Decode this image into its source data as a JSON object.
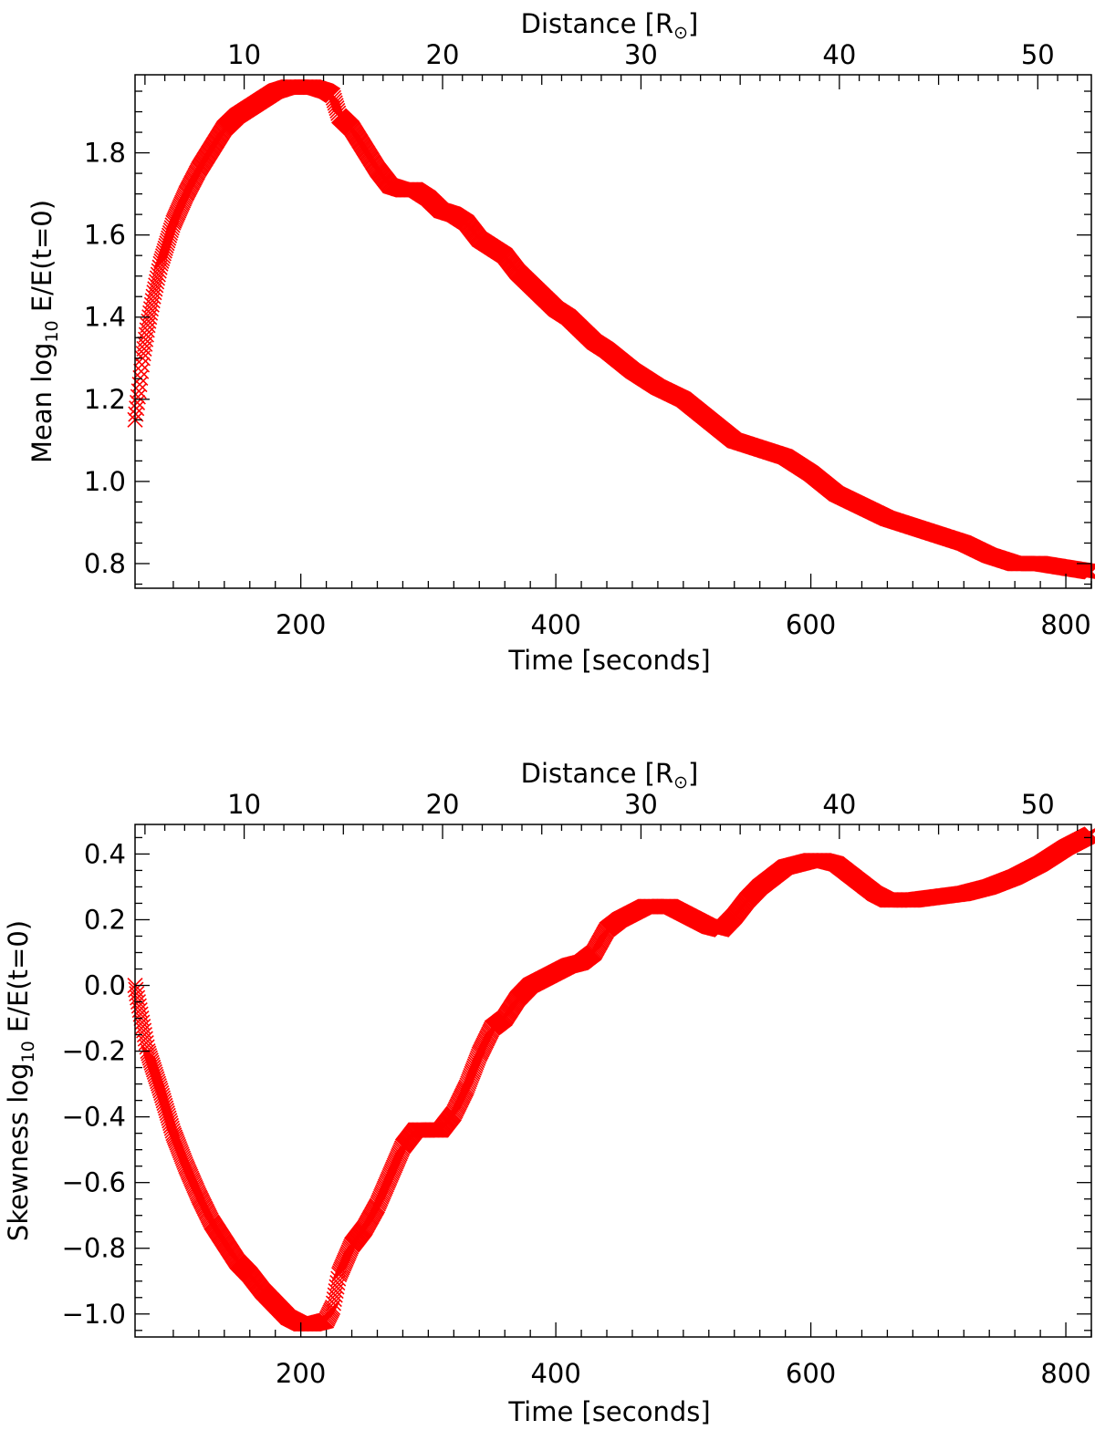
{
  "chart_data": [
    {
      "type": "scatter",
      "marker": "x",
      "color": "#ff0000",
      "xlabel": "Time [seconds]",
      "x2label": {
        "main": "Distance [R",
        "symbol": "⊙",
        "close": "]"
      },
      "ylabel": {
        "before": "Mean log",
        "sub": "10",
        "after": " E/E(t=0)"
      },
      "xlim": [
        70,
        820
      ],
      "ylim": [
        0.74,
        1.99
      ],
      "xticks": [
        200,
        400,
        600,
        800
      ],
      "x2ticks": [
        10,
        20,
        30,
        40,
        50
      ],
      "x2_range": [
        4.5,
        52.7
      ],
      "yticks": [
        0.8,
        1.0,
        1.2,
        1.4,
        1.6,
        1.8
      ],
      "ytick_labels": [
        "0.8",
        "1.0",
        "1.2",
        "1.4",
        "1.6",
        "1.8"
      ],
      "series": [
        {
          "x": [
            70,
            73,
            76,
            80,
            85,
            90,
            95,
            100,
            110,
            120,
            130,
            140,
            150,
            160,
            170,
            180,
            190,
            200,
            210,
            220,
            225,
            230,
            240,
            250,
            260,
            270,
            280,
            290,
            300,
            310,
            320,
            330,
            340,
            350,
            360,
            370,
            380,
            390,
            400,
            410,
            420,
            430,
            440,
            460,
            480,
            500,
            520,
            540,
            560,
            580,
            600,
            620,
            640,
            660,
            680,
            700,
            720,
            740,
            760,
            780,
            800,
            820
          ],
          "y": [
            1.15,
            1.22,
            1.3,
            1.38,
            1.46,
            1.53,
            1.58,
            1.63,
            1.7,
            1.76,
            1.81,
            1.86,
            1.89,
            1.91,
            1.93,
            1.95,
            1.96,
            1.96,
            1.96,
            1.95,
            1.94,
            1.89,
            1.86,
            1.81,
            1.76,
            1.72,
            1.71,
            1.71,
            1.69,
            1.66,
            1.65,
            1.63,
            1.59,
            1.57,
            1.55,
            1.51,
            1.48,
            1.45,
            1.42,
            1.4,
            1.37,
            1.34,
            1.32,
            1.27,
            1.23,
            1.2,
            1.15,
            1.1,
            1.08,
            1.06,
            1.02,
            0.97,
            0.94,
            0.91,
            0.89,
            0.87,
            0.85,
            0.82,
            0.8,
            0.8,
            0.79,
            0.78
          ]
        }
      ]
    },
    {
      "type": "scatter",
      "marker": "x",
      "color": "#ff0000",
      "xlabel": "Time [seconds]",
      "x2label": {
        "main": "Distance [R",
        "symbol": "⊙",
        "close": "]"
      },
      "ylabel": {
        "before": "Skewness log",
        "sub": "10",
        "after": " E/E(t=0)"
      },
      "xlim": [
        70,
        820
      ],
      "ylim": [
        -1.07,
        0.49
      ],
      "xticks": [
        200,
        400,
        600,
        800
      ],
      "x2ticks": [
        10,
        20,
        30,
        40,
        50
      ],
      "x2_range": [
        4.5,
        52.7
      ],
      "yticks": [
        -1.0,
        -0.8,
        -0.6,
        -0.4,
        -0.2,
        0.0,
        0.2,
        0.4
      ],
      "ytick_labels": [
        "−1.0",
        "−0.8",
        "−0.6",
        "−0.4",
        "−0.2",
        "0.0",
        "0.2",
        "0.4"
      ],
      "series": [
        {
          "x": [
            70,
            75,
            80,
            90,
            100,
            110,
            120,
            130,
            140,
            150,
            160,
            170,
            180,
            190,
            200,
            210,
            220,
            225,
            230,
            240,
            250,
            260,
            270,
            280,
            290,
            300,
            310,
            320,
            330,
            340,
            350,
            360,
            370,
            380,
            390,
            400,
            410,
            420,
            430,
            440,
            450,
            460,
            470,
            480,
            490,
            500,
            510,
            520,
            530,
            540,
            550,
            560,
            570,
            580,
            590,
            600,
            610,
            620,
            630,
            640,
            650,
            660,
            670,
            680,
            700,
            720,
            740,
            760,
            780,
            800,
            820
          ],
          "y": [
            0.0,
            -0.1,
            -0.2,
            -0.32,
            -0.45,
            -0.55,
            -0.64,
            -0.72,
            -0.78,
            -0.84,
            -0.88,
            -0.93,
            -0.97,
            -1.01,
            -1.03,
            -1.03,
            -1.02,
            -0.98,
            -0.88,
            -0.79,
            -0.74,
            -0.67,
            -0.58,
            -0.49,
            -0.44,
            -0.44,
            -0.44,
            -0.39,
            -0.31,
            -0.21,
            -0.13,
            -0.1,
            -0.04,
            0.0,
            0.02,
            0.04,
            0.06,
            0.07,
            0.1,
            0.17,
            0.2,
            0.22,
            0.24,
            0.24,
            0.24,
            0.22,
            0.2,
            0.18,
            0.17,
            0.21,
            0.26,
            0.3,
            0.33,
            0.36,
            0.37,
            0.38,
            0.38,
            0.37,
            0.34,
            0.31,
            0.28,
            0.26,
            0.26,
            0.26,
            0.27,
            0.28,
            0.3,
            0.33,
            0.37,
            0.42,
            0.46
          ]
        }
      ]
    }
  ]
}
